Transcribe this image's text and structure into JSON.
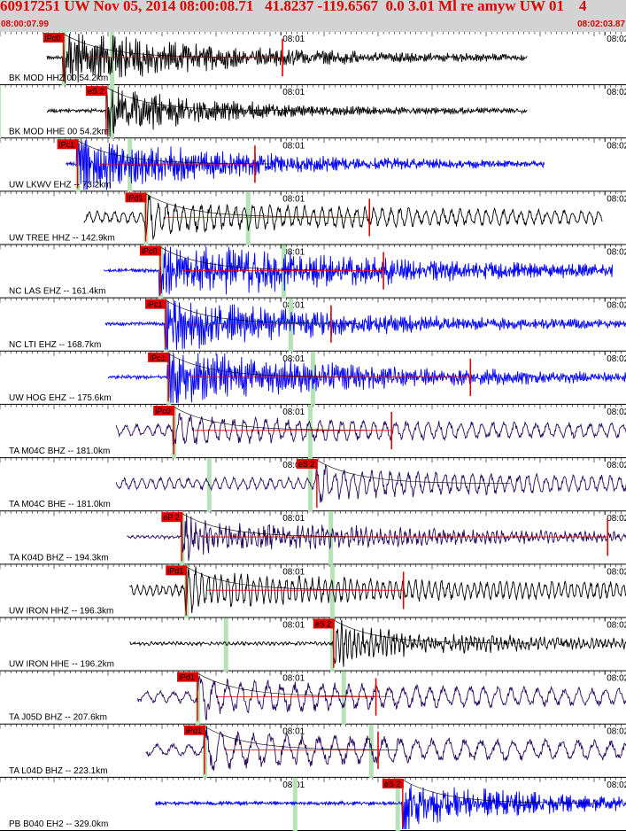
{
  "header": {
    "title": "60917251 UW Nov 05, 2014 08:00:08.71   41.8237 -119.6567  0.0 3.01 Ml re amyw UW 01    4",
    "start_time": "08:00:07.99",
    "end_time": "08:02:03.87"
  },
  "colors": {
    "header_bg": "#d3d3d3",
    "header_text": "#e00000",
    "pick_marker": "#e00000",
    "theoretical_band": "#b6e3b6",
    "trace_black": "#000000",
    "trace_blue": "#0000ff",
    "trace_purple": "#2a0a5e"
  },
  "chart_data": {
    "type": "seismogram_record_section",
    "time_window": {
      "start": "08:00:07.99",
      "end": "08:02:03.87",
      "minute_tick_label": "08:01"
    },
    "traces": [
      {
        "label": "BK MOD HHZ 00 54.2km",
        "color": "black",
        "pick": "iPc0",
        "start": 8.7,
        "end": 97.7,
        "arrival": 11.6,
        "s_arrival": 20.5,
        "amp": 0.85,
        "period": 0.35,
        "coda": 30,
        "red_flag": 52.3
      },
      {
        "label": "BK MOD HHE 00 54.2km",
        "color": "black",
        "pick": "eS 2",
        "start": 8.7,
        "end": 97.7,
        "arrival": 19.5,
        "s_arrival": 20.5,
        "amp": 0.75,
        "period": 0.35,
        "coda": 22,
        "red_flag": null
      },
      {
        "label": "UW LKWV EHZ -- 73.2km",
        "color": "blue",
        "pick": "iPc1",
        "start": 12.2,
        "end": 100.8,
        "arrival": 14.2,
        "s_arrival": 23.8,
        "amp": 0.9,
        "period": 0.3,
        "coda": 30,
        "red_flag": 47.2
      },
      {
        "label": "UW TREE HHZ -- 142.9km",
        "color": "black",
        "pick": "iPd1",
        "start": 15.5,
        "end": 111.6,
        "arrival": 26.8,
        "s_arrival": 45.7,
        "amp": 0.55,
        "period": 1.6,
        "coda": 40,
        "red_flag": 68.4
      },
      {
        "label": "NC LAS EHZ -- 161.4km",
        "color": "blue",
        "pick": "iPc0",
        "start": 19.2,
        "end": 113.5,
        "arrival": 29.5,
        "s_arrival": 52.3,
        "amp": 0.9,
        "period": 0.3,
        "coda": 45,
        "red_flag": 71.0
      },
      {
        "label": "NC LTI EHZ -- 168.7km",
        "color": "blue",
        "pick": "iPc1",
        "start": 19.5,
        "end": 117.0,
        "arrival": 30.5,
        "s_arrival": 53.6,
        "amp": 0.8,
        "period": 0.35,
        "coda": 35,
        "red_flag": 61.3
      },
      {
        "label": "UW HOG EHZ -- 175.6km",
        "color": "blue",
        "pick": "iPc1",
        "start": 20.0,
        "end": 118.0,
        "arrival": 31.0,
        "s_arrival": 57.7,
        "amp": 0.85,
        "period": 0.35,
        "coda": 40,
        "red_flag": 87.1
      },
      {
        "label": "TA M04C BHZ -- 181.0km",
        "color": "purple",
        "pick": "iPc0",
        "start": 21.5,
        "end": 119.5,
        "arrival": 32.0,
        "s_arrival": 57.2,
        "amp": 0.45,
        "period": 2.0,
        "coda": 45,
        "red_flag": 72.5
      },
      {
        "label": "TA M04C BHE -- 181.0km",
        "color": "purple",
        "pick": "eS 2",
        "start": 21.5,
        "end": 119.5,
        "arrival": 58.5,
        "s_arrival": 57.2,
        "amp": 0.5,
        "period": 1.7,
        "coda": 35,
        "red_flag": null
      },
      {
        "label": "TA K04D BHZ -- 194.3km",
        "color": "purple",
        "pick": "eP 2",
        "start": 23.5,
        "end": 122.0,
        "arrival": 33.5,
        "s_arrival": 61.0,
        "amp": 0.5,
        "period": 0.9,
        "coda": 55,
        "red_flag": 112.5
      },
      {
        "label": "UW IRON HHZ -- 196.3km",
        "color": "black",
        "pick": "iPd1",
        "start": 24.0,
        "end": 122.0,
        "arrival": 34.3,
        "s_arrival": 61.3,
        "amp": 0.6,
        "period": 1.2,
        "coda": 45,
        "red_flag": 74.7
      },
      {
        "label": "UW IRON HHE -- 196.2km",
        "color": "black",
        "pick": "eS 2",
        "start": 24.0,
        "end": 122.0,
        "arrival": 61.6,
        "s_arrival": 61.3,
        "amp": 0.5,
        "period": 0.8,
        "coda": 35,
        "red_flag": null
      },
      {
        "label": "TA J05D BHZ -- 207.6km",
        "color": "purple",
        "pick": "iPd1",
        "start": 25.5,
        "end": 123.5,
        "arrival": 36.4,
        "s_arrival": 63.4,
        "amp": 0.6,
        "period": 2.5,
        "coda": 50,
        "red_flag": 69.6
      },
      {
        "label": "TA L04D BHZ -- 223.1km",
        "color": "purple",
        "pick": "iPd1",
        "start": 27.0,
        "end": 127.0,
        "arrival": 37.7,
        "s_arrival": 68.5,
        "amp": 0.65,
        "period": 3.0,
        "coda": 55,
        "red_flag": 70.0
      },
      {
        "label": "PB B040 EH2 -- 329.0km",
        "color": "blue",
        "pick": "eS 2",
        "start": 28.8,
        "end": 127.0,
        "arrival": 74.4,
        "s_arrival": 73.4,
        "amp": 0.7,
        "period": 0.25,
        "coda": 28,
        "red_flag": null
      }
    ]
  }
}
